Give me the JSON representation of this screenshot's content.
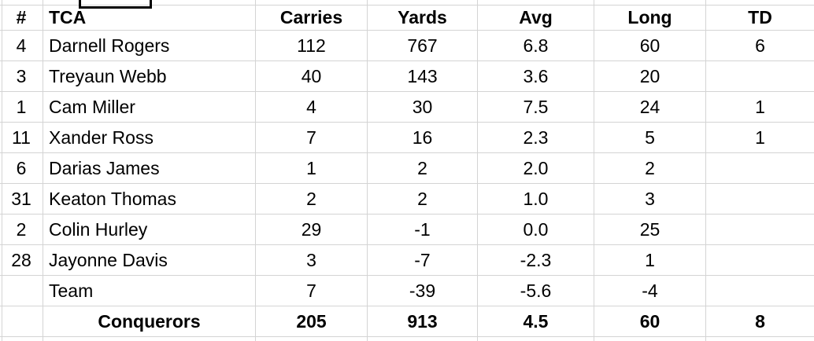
{
  "table": {
    "columns": [
      {
        "key": "num",
        "label": "#",
        "align": "center"
      },
      {
        "key": "name",
        "label": "TCA",
        "align": "left"
      },
      {
        "key": "carries",
        "label": "Carries",
        "align": "center"
      },
      {
        "key": "yards",
        "label": "Yards",
        "align": "center"
      },
      {
        "key": "avg",
        "label": "Avg",
        "align": "center"
      },
      {
        "key": "long",
        "label": "Long",
        "align": "center"
      },
      {
        "key": "td",
        "label": "TD",
        "align": "center"
      }
    ],
    "rows": [
      {
        "num": "4",
        "name": "Darnell Rogers",
        "carries": "112",
        "yards": "767",
        "avg": "6.8",
        "long": "60",
        "td": "6"
      },
      {
        "num": "3",
        "name": "Treyaun Webb",
        "carries": "40",
        "yards": "143",
        "avg": "3.6",
        "long": "20",
        "td": ""
      },
      {
        "num": "1",
        "name": "Cam Miller",
        "carries": "4",
        "yards": "30",
        "avg": "7.5",
        "long": "24",
        "td": "1"
      },
      {
        "num": "11",
        "name": "Xander Ross",
        "carries": "7",
        "yards": "16",
        "avg": "2.3",
        "long": "5",
        "td": "1"
      },
      {
        "num": "6",
        "name": "Darias James",
        "carries": "1",
        "yards": "2",
        "avg": "2.0",
        "long": "2",
        "td": ""
      },
      {
        "num": "31",
        "name": "Keaton Thomas",
        "carries": "2",
        "yards": "2",
        "avg": "1.0",
        "long": "3",
        "td": ""
      },
      {
        "num": "2",
        "name": "Colin Hurley",
        "carries": "29",
        "yards": "-1",
        "avg": "0.0",
        "long": "25",
        "td": ""
      },
      {
        "num": "28",
        "name": "Jayonne Davis",
        "carries": "3",
        "yards": "-7",
        "avg": "-2.3",
        "long": "1",
        "td": ""
      },
      {
        "num": "",
        "name": "Team",
        "carries": "7",
        "yards": "-39",
        "avg": "-5.6",
        "long": "-4",
        "td": ""
      }
    ],
    "totals_row": {
      "num": "",
      "name": "Conquerors",
      "carries": "205",
      "yards": "913",
      "avg": "4.5",
      "long": "60",
      "td": "8"
    }
  },
  "colors": {
    "background": "#ffffff",
    "gridline": "#d4d4d4",
    "text": "#000000",
    "selection_border": "#000000"
  }
}
